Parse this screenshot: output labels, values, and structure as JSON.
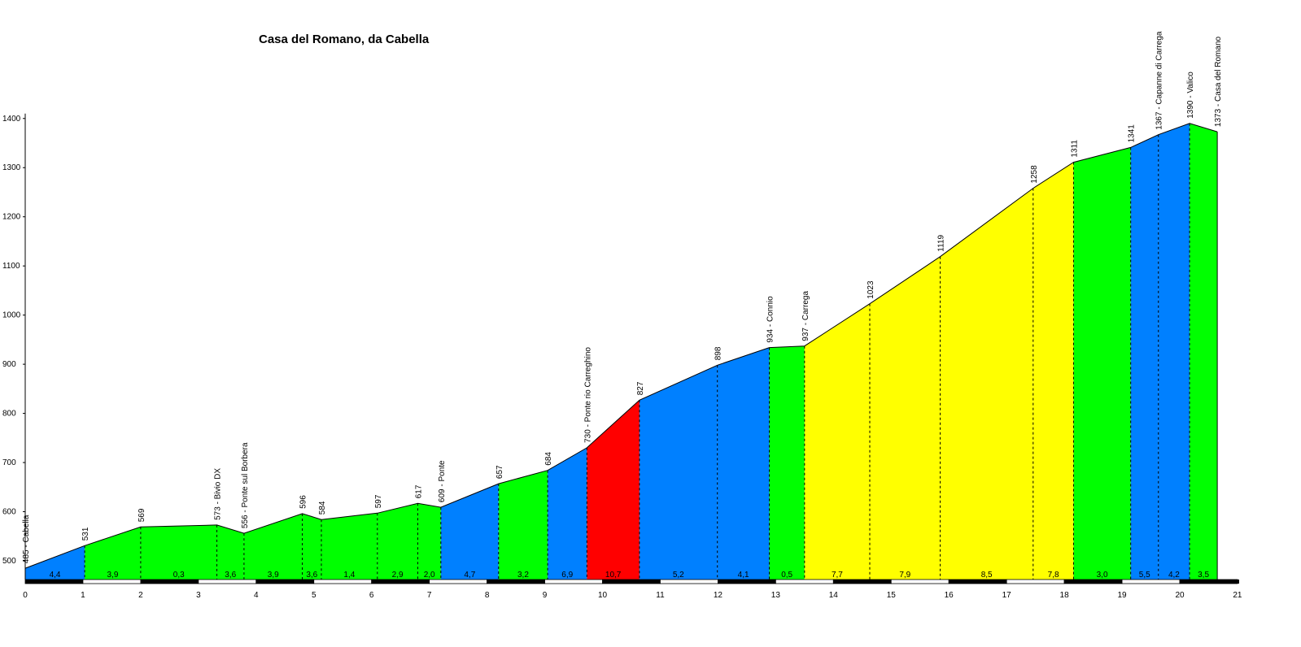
{
  "chart_data": {
    "type": "area",
    "title": "Casa del Romano, da Cabella",
    "xlabel": "",
    "ylabel": "",
    "xlim": [
      0,
      21
    ],
    "ylim": [
      455,
      1400
    ],
    "x_ticks": [
      0,
      1,
      2,
      3,
      4,
      5,
      6,
      7,
      8,
      9,
      10,
      11,
      12,
      13,
      14,
      15,
      16,
      17,
      18,
      19,
      20,
      21
    ],
    "y_ticks": [
      500,
      600,
      700,
      800,
      900,
      1000,
      1100,
      1200,
      1300,
      1400
    ],
    "grid": false,
    "points": [
      {
        "km": 0.0,
        "elev": 485,
        "label": "485 - Cabella"
      },
      {
        "km": 1.03,
        "elev": 531,
        "label": "531"
      },
      {
        "km": 2.0,
        "elev": 569,
        "label": "569"
      },
      {
        "km": 3.32,
        "elev": 573,
        "label": "573 - Bivio DX"
      },
      {
        "km": 3.79,
        "elev": 556,
        "label": "556 - Ponte sul Borbera"
      },
      {
        "km": 4.8,
        "elev": 596,
        "label": "596"
      },
      {
        "km": 5.13,
        "elev": 584,
        "label": "584"
      },
      {
        "km": 6.1,
        "elev": 597,
        "label": "597"
      },
      {
        "km": 6.8,
        "elev": 617,
        "label": "617"
      },
      {
        "km": 7.2,
        "elev": 609,
        "label": "609 - Ponte"
      },
      {
        "km": 8.2,
        "elev": 657,
        "label": "657"
      },
      {
        "km": 9.05,
        "elev": 684,
        "label": "684"
      },
      {
        "km": 9.73,
        "elev": 730,
        "label": "730 - Ponte rio Carreghino"
      },
      {
        "km": 10.64,
        "elev": 827,
        "label": "827"
      },
      {
        "km": 11.99,
        "elev": 898,
        "label": "898"
      },
      {
        "km": 12.89,
        "elev": 934,
        "label": "934 - Connio"
      },
      {
        "km": 13.5,
        "elev": 937,
        "label": "937 - Carrega"
      },
      {
        "km": 14.63,
        "elev": 1023,
        "label": "1023"
      },
      {
        "km": 15.85,
        "elev": 1119,
        "label": "1119"
      },
      {
        "km": 17.46,
        "elev": 1258,
        "label": "1258"
      },
      {
        "km": 18.16,
        "elev": 1311,
        "label": "1311"
      },
      {
        "km": 19.15,
        "elev": 1341,
        "label": "1341"
      },
      {
        "km": 19.63,
        "elev": 1367,
        "label": "1367 - Capanne di Carrega"
      },
      {
        "km": 20.17,
        "elev": 1390,
        "label": "1390 - Valico"
      },
      {
        "km": 20.65,
        "elev": 1373,
        "label": "1373 - Casa del Romano"
      }
    ],
    "segments": [
      {
        "gradient": "4,4",
        "color": "#0080ff"
      },
      {
        "gradient": "3,9",
        "color": "#00ff00"
      },
      {
        "gradient": "0,3",
        "color": "#00ff00"
      },
      {
        "gradient": "3,6",
        "color": "#00ff00"
      },
      {
        "gradient": "3,9",
        "color": "#00ff00"
      },
      {
        "gradient": "3,6",
        "color": "#00ff00"
      },
      {
        "gradient": "1,4",
        "color": "#00ff00"
      },
      {
        "gradient": "2,9",
        "color": "#00ff00"
      },
      {
        "gradient": "2,0",
        "color": "#00ff00"
      },
      {
        "gradient": "4,7",
        "color": "#0080ff"
      },
      {
        "gradient": "3,2",
        "color": "#00ff00"
      },
      {
        "gradient": "6,9",
        "color": "#0080ff"
      },
      {
        "gradient": "10,7",
        "color": "#ff0000"
      },
      {
        "gradient": "5,2",
        "color": "#0080ff"
      },
      {
        "gradient": "4,1",
        "color": "#0080ff"
      },
      {
        "gradient": "0,5",
        "color": "#00ff00"
      },
      {
        "gradient": "7,7",
        "color": "#ffff00"
      },
      {
        "gradient": "7,9",
        "color": "#ffff00"
      },
      {
        "gradient": "8,5",
        "color": "#ffff00"
      },
      {
        "gradient": "7,8",
        "color": "#ffff00"
      },
      {
        "gradient": "3,0",
        "color": "#00ff00"
      },
      {
        "gradient": "5,5",
        "color": "#0080ff"
      },
      {
        "gradient": "4,2",
        "color": "#0080ff"
      },
      {
        "gradient": "3,5",
        "color": "#00ff00"
      }
    ]
  }
}
